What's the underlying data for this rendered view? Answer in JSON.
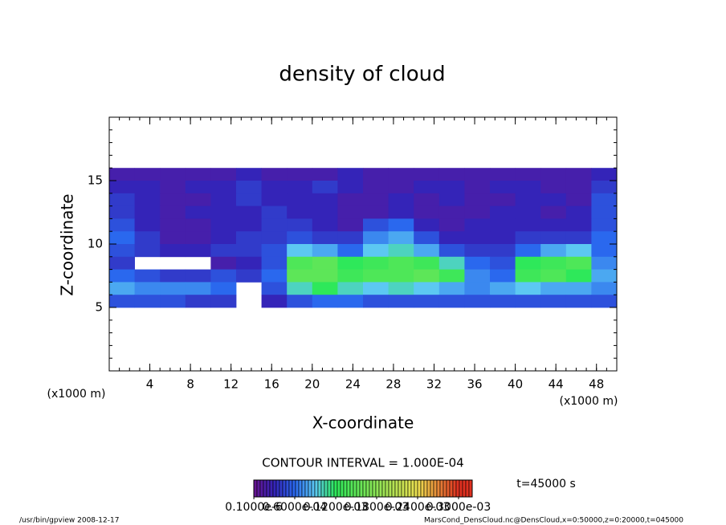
{
  "chart_data": {
    "type": "heatmap",
    "title": "density of cloud",
    "x_label": "X-coordinate",
    "y_label": "Z-coordinate",
    "x_unit_left": "(x1000 m)",
    "x_unit_right": "(x1000 m)",
    "contour_interval": "CONTOUR INTERVAL = 1.000E-04",
    "time_label": "t=45000 s",
    "footer_left": "/usr/bin/gpview  2008-12-17",
    "footer_right": "MarsCond_DensCloud.nc@DensCloud,x=0:50000,z=0:20000,t=045000",
    "xlim": [
      0,
      50
    ],
    "ylim": [
      0,
      20
    ],
    "xticks": [
      4,
      8,
      12,
      16,
      20,
      24,
      28,
      32,
      36,
      40,
      44,
      48
    ],
    "yticks": [
      5,
      10,
      15
    ],
    "x": [
      1.25,
      3.75,
      6.25,
      8.75,
      11.25,
      13.75,
      16.25,
      18.75,
      21.25,
      23.75,
      26.25,
      28.75,
      31.25,
      33.75,
      36.25,
      38.75,
      41.25,
      43.75,
      46.25,
      48.75
    ],
    "z": [
      15.5,
      14.5,
      13.5,
      12.5,
      11.5,
      10.5,
      9.5,
      8.5,
      7.5,
      6.5,
      5.5
    ],
    "values": [
      [
        2e-05,
        2e-05,
        2e-05,
        2e-05,
        2e-05,
        3e-05,
        2e-05,
        2e-05,
        2e-05,
        3e-05,
        2e-05,
        2e-05,
        2e-05,
        2e-05,
        2e-05,
        2e-05,
        2e-05,
        2e-05,
        2e-05,
        3e-05
      ],
      [
        3e-05,
        3e-05,
        2e-05,
        3e-05,
        3e-05,
        4e-05,
        3e-05,
        3e-05,
        4e-05,
        3e-05,
        2e-05,
        2e-05,
        3e-05,
        3e-05,
        2e-05,
        3e-05,
        3e-05,
        2e-05,
        2e-05,
        4e-05
      ],
      [
        4e-05,
        3e-05,
        2e-05,
        2e-05,
        3e-05,
        4e-05,
        3e-05,
        3e-05,
        3e-05,
        2e-05,
        2e-05,
        3e-05,
        2e-05,
        3e-05,
        2e-05,
        2e-05,
        3e-05,
        3e-05,
        2e-05,
        5e-05
      ],
      [
        4e-05,
        3e-05,
        2e-05,
        3e-05,
        3e-05,
        3e-05,
        4e-05,
        3e-05,
        3e-05,
        2e-05,
        2e-05,
        3e-05,
        2e-05,
        2e-05,
        2e-05,
        3e-05,
        3e-05,
        2e-05,
        3e-05,
        5e-05
      ],
      [
        5e-05,
        3e-05,
        2e-05,
        2e-05,
        3e-05,
        3e-05,
        4e-05,
        4e-05,
        3e-05,
        2e-05,
        5e-05,
        6e-05,
        3e-05,
        2e-05,
        3e-05,
        3e-05,
        3e-05,
        3e-05,
        3e-05,
        5e-05
      ],
      [
        6e-05,
        4e-05,
        2e-05,
        2e-05,
        3e-05,
        4e-05,
        4e-05,
        5e-05,
        4e-05,
        4e-05,
        7e-05,
        8e-05,
        5e-05,
        3e-05,
        3e-05,
        3e-05,
        4e-05,
        4e-05,
        4e-05,
        6e-05
      ],
      [
        5e-05,
        4e-05,
        3e-05,
        3e-05,
        4e-05,
        4e-05,
        5e-05,
        9e-05,
        8e-05,
        6e-05,
        9e-05,
        0.0001,
        8e-05,
        5e-05,
        4e-05,
        4e-05,
        6e-05,
        8e-05,
        9e-05,
        6e-05
      ],
      [
        4e-05,
        null,
        null,
        null,
        2e-05,
        3e-05,
        5e-05,
        0.00014,
        0.00015,
        0.00012,
        0.00013,
        0.00014,
        0.00013,
        0.0001,
        6e-05,
        5e-05,
        0.00012,
        0.00013,
        0.00014,
        7e-05
      ],
      [
        6e-05,
        5e-05,
        4e-05,
        4e-05,
        5e-05,
        4e-05,
        6e-05,
        0.00015,
        0.00015,
        0.00013,
        0.00014,
        0.00014,
        0.00015,
        0.00013,
        7e-05,
        6e-05,
        0.00013,
        0.00014,
        0.00012,
        8e-05
      ],
      [
        8e-05,
        7e-05,
        7e-05,
        7e-05,
        6e-05,
        null,
        5e-05,
        0.0001,
        0.00012,
        0.0001,
        9e-05,
        0.0001,
        9e-05,
        8e-05,
        7e-05,
        8e-05,
        9e-05,
        8e-05,
        8e-05,
        7e-05
      ],
      [
        5e-05,
        5e-05,
        5e-05,
        4e-05,
        4e-05,
        null,
        3e-05,
        5e-05,
        6e-05,
        6e-05,
        5e-05,
        5e-05,
        5e-05,
        5e-05,
        5e-05,
        5e-05,
        5e-05,
        5e-05,
        5e-05,
        5e-05
      ]
    ],
    "color_stops": [
      [
        1e-07,
        "#6a1490"
      ],
      [
        3e-05,
        "#3424b8"
      ],
      [
        6e-05,
        "#2a68ee"
      ],
      [
        9e-05,
        "#5cc8f2"
      ],
      [
        0.00012,
        "#2ee85a"
      ],
      [
        0.00024,
        "#ece050"
      ],
      [
        0.0003,
        "#e03020"
      ]
    ],
    "colorbar_lim": [
      0,
      0.00032
    ],
    "colorbar_ticks": [
      {
        "value": 1e-07,
        "label": "0.1000e-6"
      },
      {
        "value": 6e-05,
        "label": "0.6000e-04"
      },
      {
        "value": 0.00012,
        "label": "0.1200e-03"
      },
      {
        "value": 0.00018,
        "label": "0.1800e-03"
      },
      {
        "value": 0.00024,
        "label": "0.2400e-03"
      },
      {
        "value": 0.0003,
        "label": "0.3000e-03"
      }
    ]
  }
}
